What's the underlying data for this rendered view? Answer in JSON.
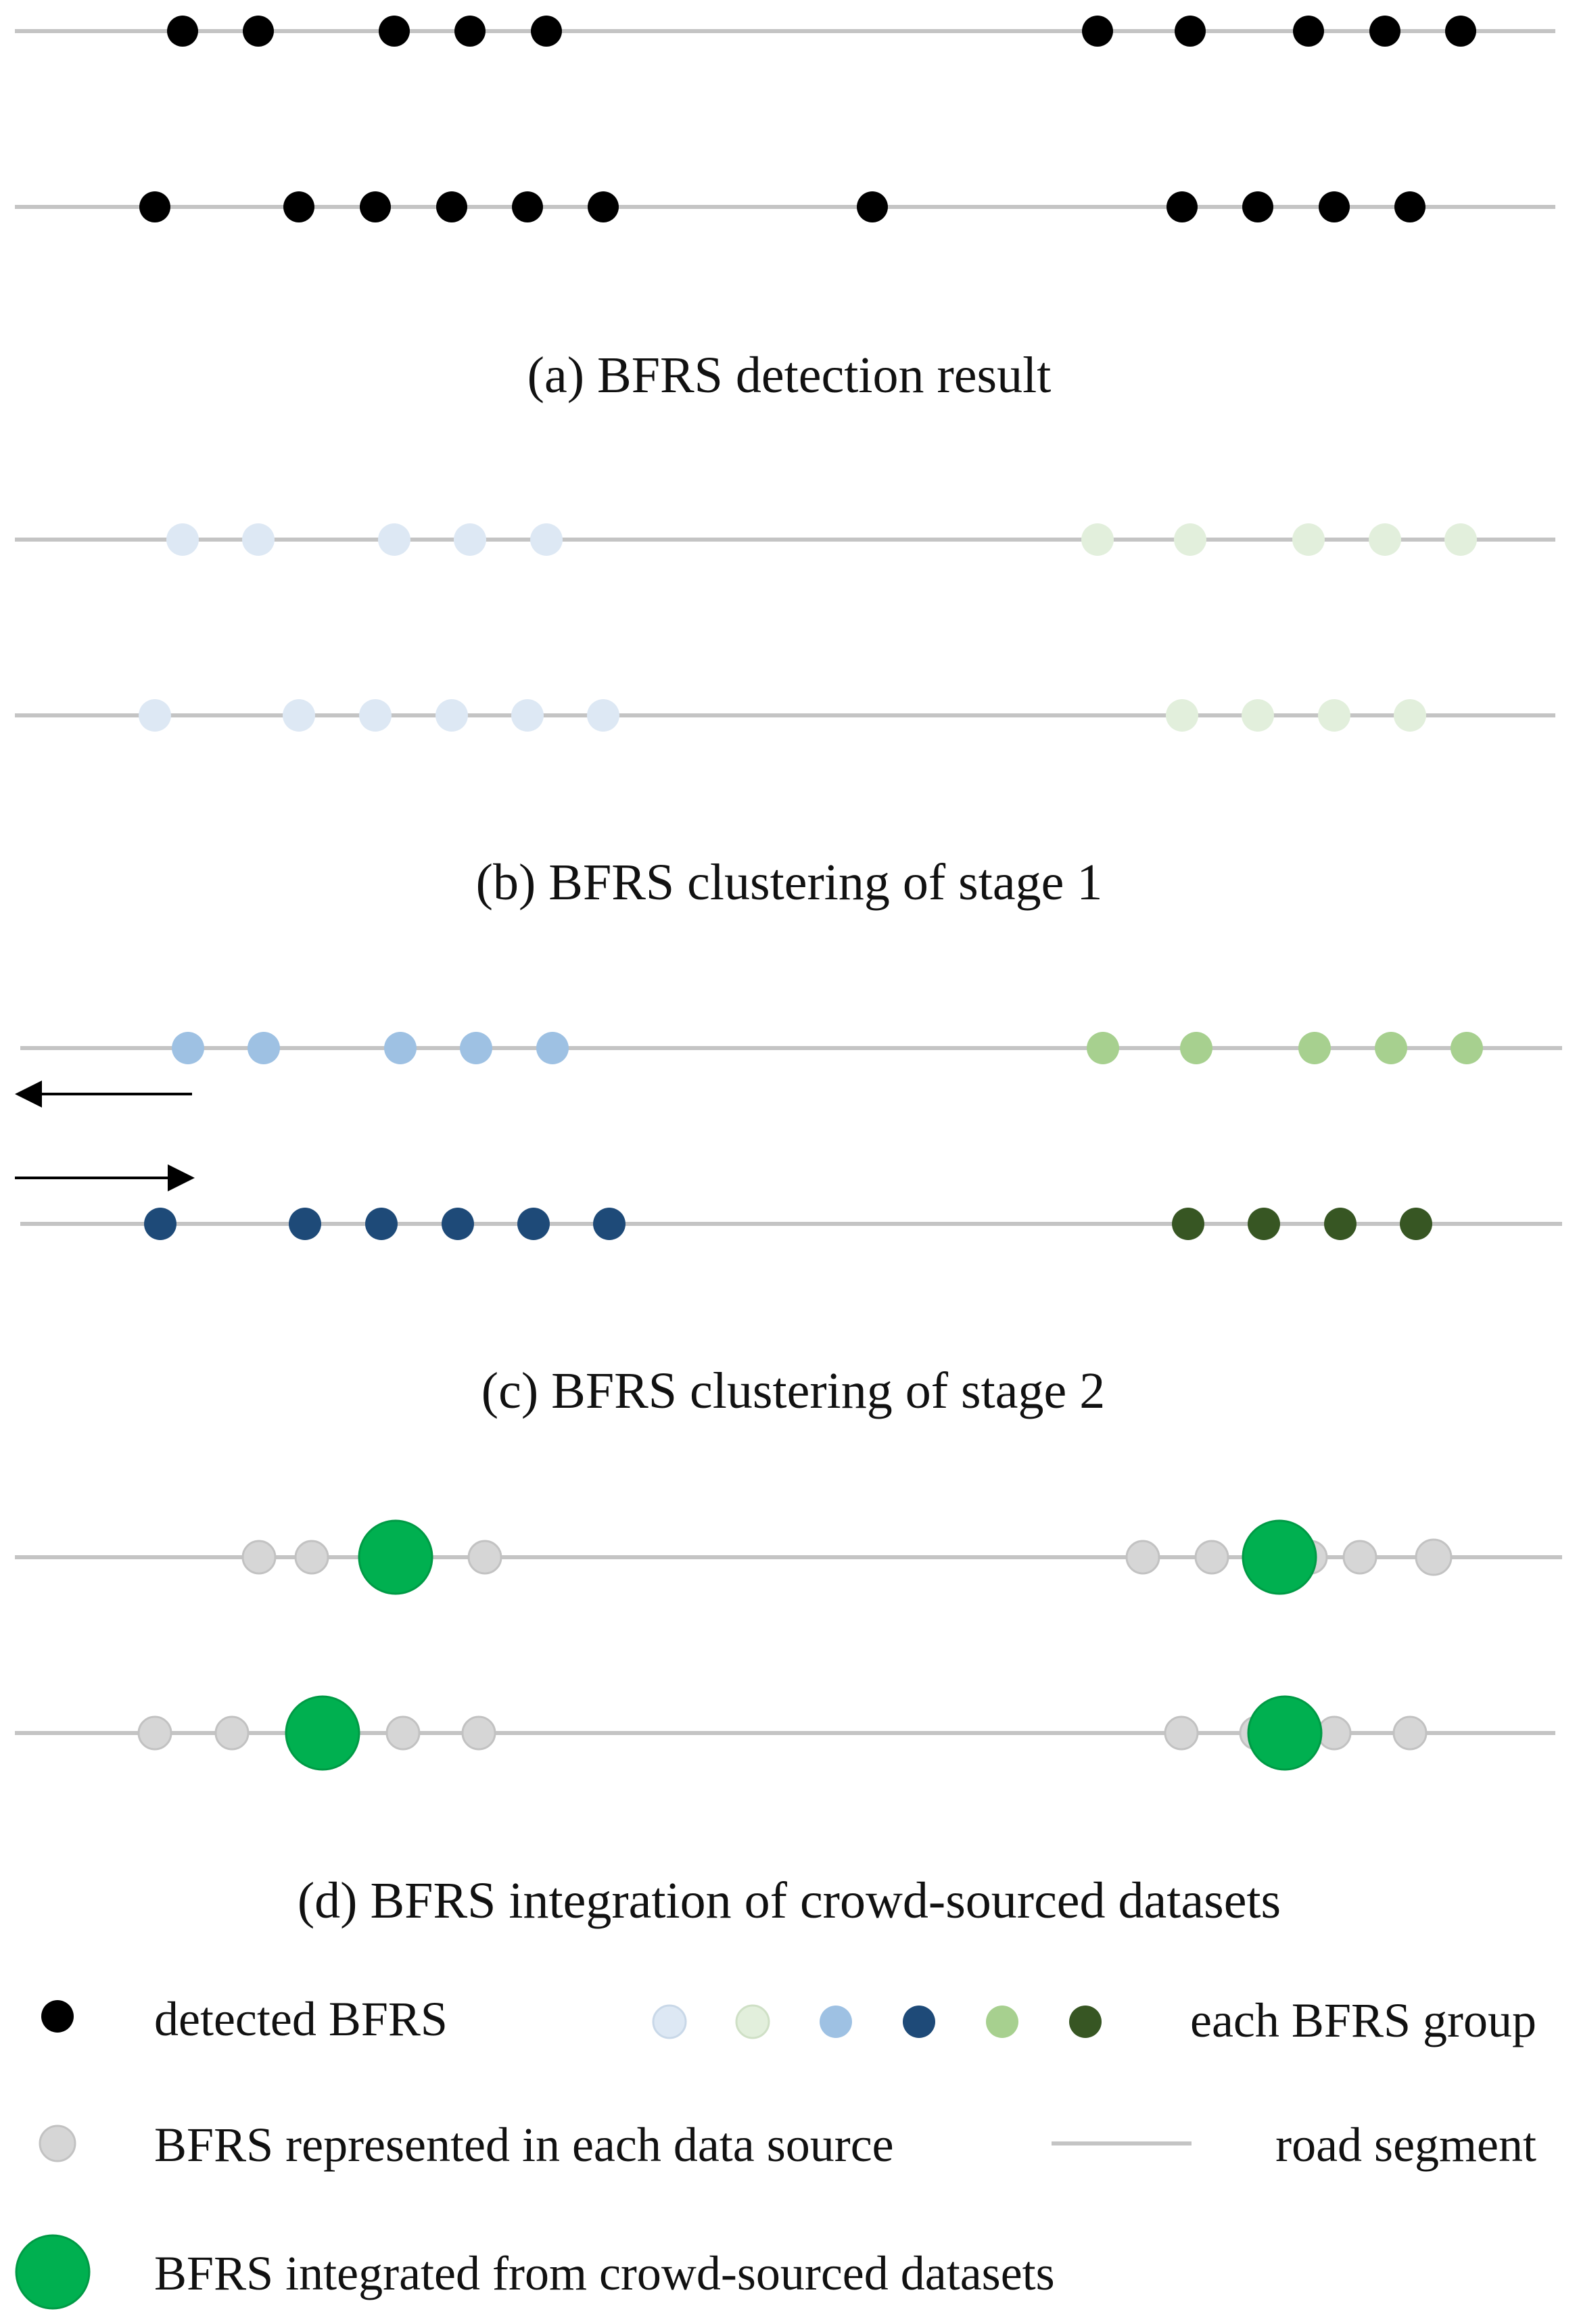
{
  "captions": {
    "a": "(a) BFRS detection result",
    "b": "(b) BFRS clustering of stage 1",
    "c": "(c) BFRS clustering of stage 2",
    "d": "(d) BFRS integration of crowd-sourced datasets"
  },
  "legend": {
    "detected": "detected BFRS",
    "group": "each BFRS group",
    "represented": "BFRS represented in each data source",
    "road": "road segment",
    "integrated": "BFRS integrated from crowd-sourced datasets"
  },
  "colors": {
    "road": "#c4c4c4",
    "detected": "#000000",
    "group_light_blue": "#dde8f4",
    "group_light_green": "#e2efdc",
    "group_blue": "#9ec1e3",
    "group_dark_blue": "#1e4a78",
    "group_green": "#a7d08f",
    "group_dark_green": "#375623",
    "represented": "#d6d6d6",
    "integrated": "#00b050"
  },
  "icons": {
    "left_arrow": "left-arrow-icon",
    "right_arrow": "right-arrow-icon"
  }
}
